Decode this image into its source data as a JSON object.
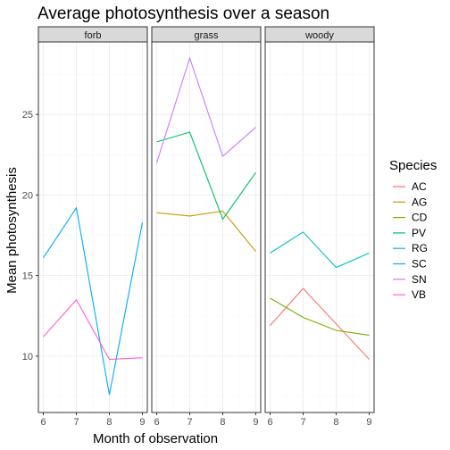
{
  "chart_data": {
    "type": "line",
    "title": "Average photosynthesis over a season",
    "xlabel": "Month of observation",
    "ylabel": "Mean photosynthesis",
    "x_ticks": [
      6,
      7,
      8,
      9
    ],
    "y_ticks": [
      10,
      15,
      20,
      25
    ],
    "ylim": [
      6.5,
      29.5
    ],
    "xlim": [
      5.85,
      9.15
    ],
    "grid": true,
    "legend_position": "right",
    "legend_title": "Species",
    "legend": [
      {
        "name": "AC",
        "color": "#F8766D"
      },
      {
        "name": "AG",
        "color": "#CD9600"
      },
      {
        "name": "CD",
        "color": "#7CAE00"
      },
      {
        "name": "PV",
        "color": "#00BE67"
      },
      {
        "name": "RG",
        "color": "#00BFC4"
      },
      {
        "name": "SC",
        "color": "#00A9FF"
      },
      {
        "name": "SN",
        "color": "#C77CFF"
      },
      {
        "name": "VB",
        "color": "#FF61CC"
      }
    ],
    "panels": [
      {
        "label": "forb",
        "series": [
          {
            "name": "SC",
            "color": "#00A9FF",
            "x": [
              6,
              7,
              8,
              9
            ],
            "y": [
              16.1,
              19.2,
              7.6,
              18.3
            ]
          },
          {
            "name": "VB",
            "color": "#FF61CC",
            "x": [
              6,
              7,
              8,
              9
            ],
            "y": [
              11.2,
              13.5,
              9.8,
              9.9
            ]
          }
        ]
      },
      {
        "label": "grass",
        "series": [
          {
            "name": "AG",
            "color": "#CD9600",
            "x": [
              6,
              7,
              8,
              9
            ],
            "y": [
              18.9,
              18.7,
              19.0,
              16.5
            ]
          },
          {
            "name": "PV",
            "color": "#00BE67",
            "x": [
              6,
              7,
              8,
              9
            ],
            "y": [
              23.3,
              23.9,
              18.5,
              21.4
            ]
          },
          {
            "name": "SN",
            "color": "#C77CFF",
            "x": [
              6,
              7,
              8,
              9
            ],
            "y": [
              22.0,
              28.5,
              22.4,
              24.2
            ]
          }
        ]
      },
      {
        "label": "woody",
        "series": [
          {
            "name": "AC",
            "color": "#F8766D",
            "x": [
              6,
              7,
              8,
              9
            ],
            "y": [
              11.9,
              14.2,
              12.0,
              9.8
            ]
          },
          {
            "name": "CD",
            "color": "#7CAE00",
            "x": [
              6,
              7,
              8,
              9
            ],
            "y": [
              13.6,
              12.4,
              11.6,
              11.3
            ]
          },
          {
            "name": "RG",
            "color": "#00BFC4",
            "x": [
              6,
              7,
              8,
              9
            ],
            "y": [
              16.4,
              17.7,
              15.5,
              16.4
            ]
          }
        ]
      }
    ]
  }
}
